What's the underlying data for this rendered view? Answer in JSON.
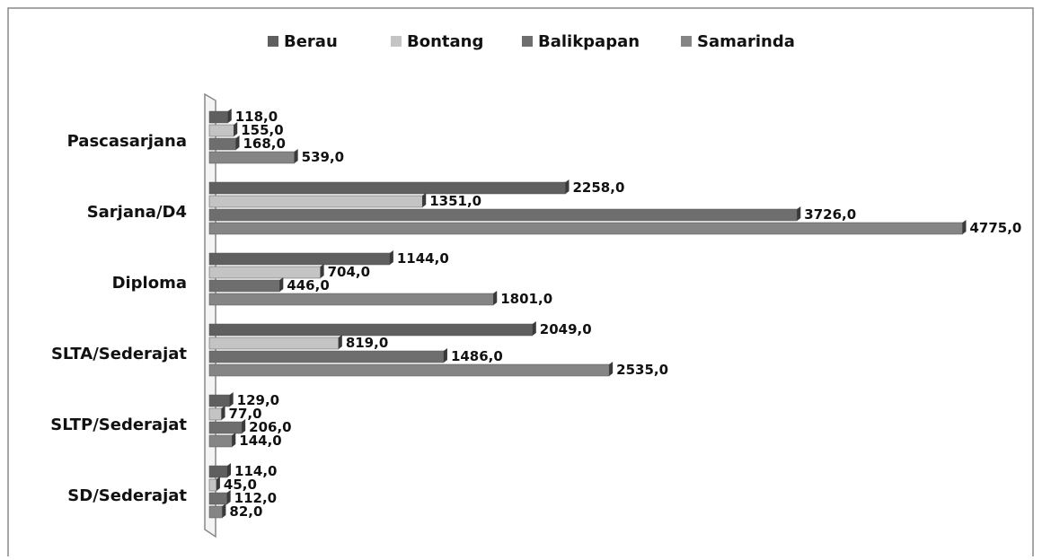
{
  "chart_data": {
    "type": "bar",
    "orientation": "horizontal",
    "categories": [
      "Pascasarjana",
      "Sarjana/D4",
      "Diploma",
      "SLTA/Sederajat",
      "SLTP/Sederajat",
      "SD/Sederajat"
    ],
    "xlim": [
      0,
      5000
    ],
    "legend": "top",
    "series": [
      {
        "name": "Berau",
        "color": "#5f5f5f",
        "values": [
          118,
          2258,
          1144,
          2049,
          129,
          114
        ],
        "value_labels": [
          "118,0",
          "2258,0",
          "1144,0",
          "2049,0",
          "129,0",
          "114,0"
        ]
      },
      {
        "name": "Bontang",
        "color": "#c4c4c4",
        "values": [
          155,
          1351,
          704,
          819,
          77,
          45
        ],
        "value_labels": [
          "155,0",
          "1351,0",
          "704,0",
          "819,0",
          "77,0",
          "45,0"
        ]
      },
      {
        "name": "Balikpapan",
        "color": "#6e6e6e",
        "values": [
          168,
          3726,
          446,
          1486,
          206,
          112
        ],
        "value_labels": [
          "168,0",
          "3726,0",
          "446,0",
          "1486,0",
          "206,0",
          "112,0"
        ]
      },
      {
        "name": "Samarinda",
        "color": "#858585",
        "values": [
          539,
          4775,
          1801,
          2535,
          144,
          82
        ],
        "value_labels": [
          "539,0",
          "4775,0",
          "1801,0",
          "2535,0",
          "144,0",
          "82,0"
        ]
      }
    ]
  }
}
